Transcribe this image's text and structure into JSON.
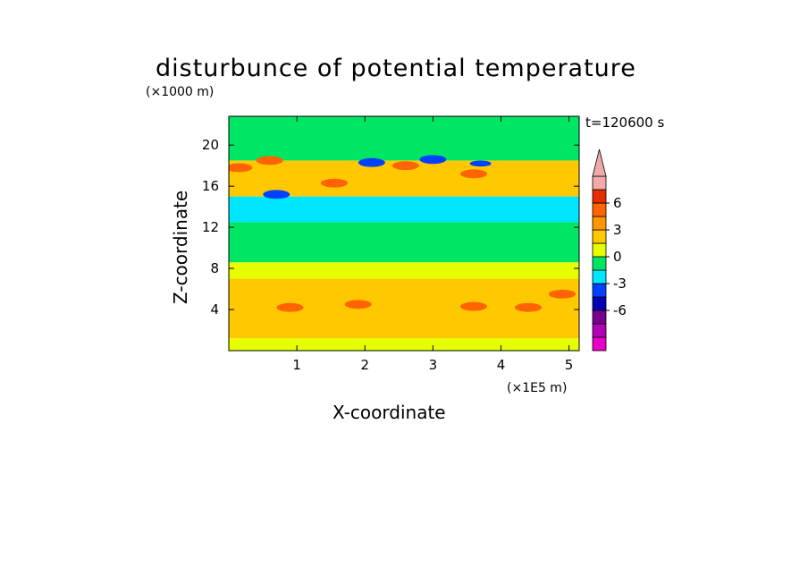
{
  "chart_data": {
    "type": "heatmap",
    "title": "disturbunce of potential temperature",
    "annotation": "t=120600 s",
    "xlabel": "X-coordinate",
    "ylabel": "Z-coordinate",
    "x_unit": "(×1E5 m)",
    "y_unit": "(×1000 m)",
    "xlim": [
      0,
      5.15
    ],
    "ylim": [
      0,
      22.8
    ],
    "x_ticks": [
      1,
      2,
      3,
      4,
      5
    ],
    "y_ticks": [
      4,
      8,
      12,
      16,
      20
    ],
    "x_tick_labels": [
      "1",
      "2",
      "3",
      "4",
      "5"
    ],
    "y_tick_labels": [
      "4",
      "8",
      "12",
      "16",
      "20"
    ],
    "colorbar": {
      "labels": [
        "6",
        "3",
        "0",
        "-3",
        "-6"
      ],
      "label_values": [
        6,
        3,
        0,
        -3,
        -6
      ],
      "levels": [
        -9,
        -7.5,
        -6,
        -4.5,
        -3,
        -1.5,
        0,
        1.5,
        3,
        4.5,
        6,
        7.5
      ],
      "colors": [
        "#e600c8",
        "#b400b4",
        "#78008c",
        "#0000b4",
        "#0040ff",
        "#00e6ff",
        "#00e664",
        "#e6ff00",
        "#ffc800",
        "#ff9600",
        "#ff6400",
        "#e62d00",
        "#f0aaaa"
      ],
      "extend_top": true
    },
    "layers": [
      {
        "z_range": [
          0,
          1.2
        ],
        "value": 1.0
      },
      {
        "z_range": [
          1.2,
          7.0
        ],
        "value": 2.5
      },
      {
        "z_range": [
          7.0,
          8.6
        ],
        "value": 1.0
      },
      {
        "z_range": [
          8.6,
          12.5
        ],
        "value": -0.8
      },
      {
        "z_range": [
          12.5,
          15.0
        ],
        "value": -2.0
      },
      {
        "z_range": [
          15.0,
          18.5
        ],
        "value": 1.5
      },
      {
        "z_range": [
          18.5,
          22.8
        ],
        "value": -0.5
      }
    ],
    "features": [
      {
        "x": 0.15,
        "z": 17.8,
        "value": 4.5
      },
      {
        "x": 0.6,
        "z": 18.5,
        "value": 4.5
      },
      {
        "x": 1.55,
        "z": 16.3,
        "value": 4.5
      },
      {
        "x": 2.1,
        "z": 18.3,
        "value": -4.5
      },
      {
        "x": 2.6,
        "z": 18.0,
        "value": 4.5
      },
      {
        "x": 3.0,
        "z": 18.6,
        "value": -4.5
      },
      {
        "x": 3.6,
        "z": 17.2,
        "value": 4.5
      },
      {
        "x": 0.7,
        "z": 15.2,
        "value": -4.5
      },
      {
        "x": 3.7,
        "z": 18.2,
        "value": -3.5
      },
      {
        "x": 0.9,
        "z": 4.2,
        "value": 4.5
      },
      {
        "x": 1.9,
        "z": 4.5,
        "value": 4.5
      },
      {
        "x": 3.6,
        "z": 4.3,
        "value": 4.5
      },
      {
        "x": 4.4,
        "z": 4.2,
        "value": 4.5
      },
      {
        "x": 4.9,
        "z": 5.5,
        "value": 4.5
      }
    ]
  }
}
